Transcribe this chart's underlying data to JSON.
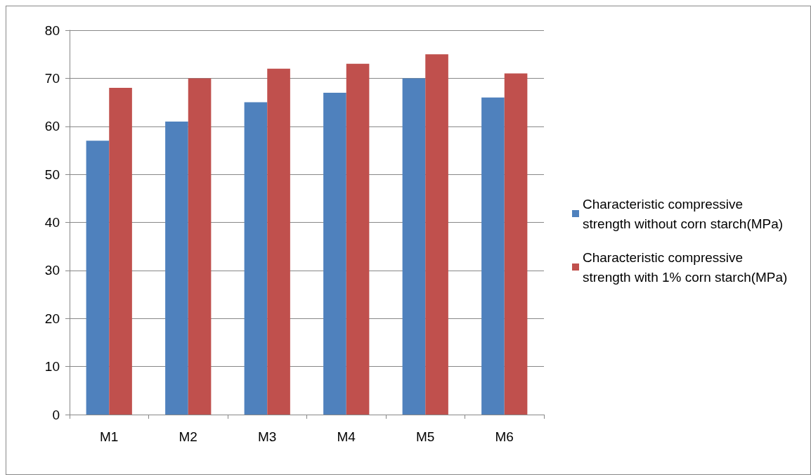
{
  "chart_data": {
    "type": "bar",
    "categories": [
      "M1",
      "M2",
      "M3",
      "M4",
      "M5",
      "M6"
    ],
    "series": [
      {
        "name": "Characteristic compressive strength without corn starch(MPa)",
        "color": "#4f81bd",
        "values": [
          57,
          61,
          65,
          67,
          70,
          66
        ]
      },
      {
        "name": "Characteristic compressive strength with 1% corn starch(MPa)",
        "color": "#c0504d",
        "values": [
          68,
          70,
          72,
          73,
          75,
          71
        ]
      }
    ],
    "ylim": [
      0,
      80
    ],
    "yticks": [
      0,
      10,
      20,
      30,
      40,
      50,
      60,
      70,
      80
    ],
    "grid": "y",
    "legend": "right"
  }
}
